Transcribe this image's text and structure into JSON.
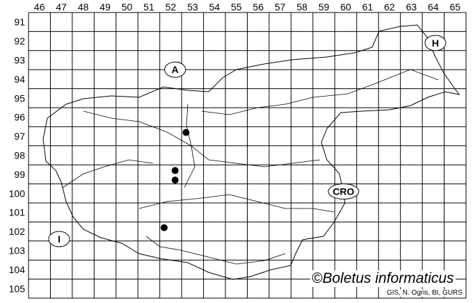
{
  "map": {
    "columns": [
      "46",
      "47",
      "48",
      "49",
      "50",
      "51",
      "52",
      "53",
      "54",
      "55",
      "56",
      "57",
      "58",
      "59",
      "60",
      "61",
      "62",
      "63",
      "64",
      "65"
    ],
    "rows": [
      "91",
      "92",
      "93",
      "94",
      "95",
      "96",
      "97",
      "98",
      "99",
      "100",
      "101",
      "102",
      "103",
      "104",
      "105"
    ],
    "country_labels": [
      {
        "text": "A",
        "col": 52.7,
        "row": 94.0
      },
      {
        "text": "H",
        "col": 64.6,
        "row": 92.6
      },
      {
        "text": "CRO",
        "col": 60.4,
        "row": 100.4
      },
      {
        "text": "I",
        "col": 47.4,
        "row": 102.9
      }
    ],
    "records": [
      {
        "col": 53.2,
        "row": 97.3
      },
      {
        "col": 52.7,
        "row": 99.3
      },
      {
        "col": 52.7,
        "row": 99.8
      },
      {
        "col": 52.2,
        "row": 102.3
      }
    ],
    "dot_color": "#000000",
    "line_color": "#000000"
  },
  "credit": "©Boletus informaticus",
  "source": "GIS, N. Ogris, BI, GURS"
}
